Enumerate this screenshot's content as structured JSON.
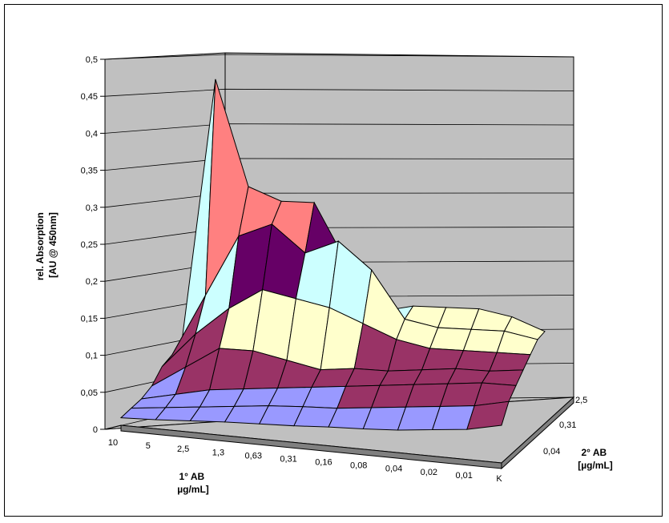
{
  "chart_data": {
    "type": "surface3d",
    "title": "",
    "zlabel": [
      "rel. Absorption",
      "[AU @ 450nm]"
    ],
    "xlabel": [
      "1° AB",
      "µg/mL]"
    ],
    "ylabel": [
      "2° AB",
      "[µg/mL]"
    ],
    "zlim": [
      0,
      0.5
    ],
    "z_ticks": [
      "0",
      "0,05",
      "0,1",
      "0,15",
      "0,2",
      "0,25",
      "0,3",
      "0,35",
      "0,4",
      "0,45",
      "0,5"
    ],
    "x_categories": [
      "10",
      "5",
      "2,5",
      "1,3",
      "0,63",
      "0,31",
      "0,16",
      "0,08",
      "0,04",
      "0,02",
      "0,01",
      "K"
    ],
    "y_ticks_shown": [
      "0,04",
      "0,31",
      "2,5"
    ],
    "y_rows": 7,
    "band_colors": [
      "#9999ff",
      "#993366",
      "#ffffcc",
      "#ccffff",
      "#660066",
      "#ff8080",
      "#0066cc",
      "#ccccff",
      "#000080",
      "#ff00ff"
    ],
    "values_front_to_back": [
      [
        0.01,
        0.012,
        0.015,
        0.018,
        0.02,
        0.022,
        0.025,
        0.027,
        0.03,
        0.035,
        0.04,
        0.05
      ],
      [
        0.015,
        0.02,
        0.025,
        0.03,
        0.035,
        0.038,
        0.04,
        0.045,
        0.05,
        0.055,
        0.06,
        0.07
      ],
      [
        0.02,
        0.03,
        0.04,
        0.045,
        0.05,
        0.055,
        0.06,
        0.065,
        0.07,
        0.075,
        0.08,
        0.08
      ],
      [
        0.03,
        0.06,
        0.09,
        0.09,
        0.08,
        0.07,
        0.075,
        0.075,
        0.08,
        0.085,
        0.085,
        0.09
      ],
      [
        0.05,
        0.1,
        0.14,
        0.17,
        0.16,
        0.15,
        0.13,
        0.11,
        0.1,
        0.1,
        0.1,
        0.1
      ],
      [
        0.06,
        0.15,
        0.24,
        0.26,
        0.22,
        0.24,
        0.2,
        0.13,
        0.12,
        0.12,
        0.12,
        0.11
      ],
      [
        0.08,
        0.47,
        0.31,
        0.29,
        0.29,
        0.2,
        0.13,
        0.14,
        0.14,
        0.14,
        0.13,
        0.11
      ]
    ]
  }
}
